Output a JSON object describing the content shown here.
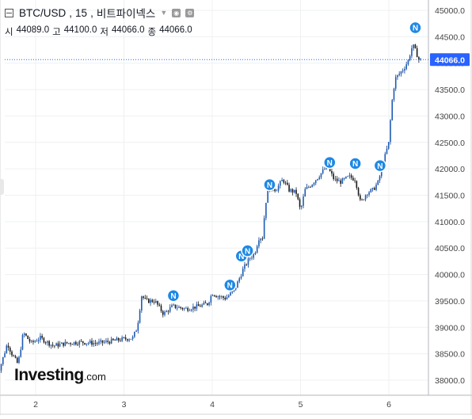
{
  "header": {
    "symbol": "BTC/USD",
    "separator1": ",",
    "interval": "15",
    "separator2": ",",
    "exchange": "비트파이넥스",
    "ohlc": {
      "open_label": "시",
      "open_value": "44089.0",
      "high_label": "고",
      "high_value": "44100.0",
      "low_label": "저",
      "low_value": "44066.0",
      "close_label": "종",
      "close_value": "44066.0"
    }
  },
  "price_tag": "44066.0",
  "logo": {
    "main": "Investing",
    "suffix": ".com"
  },
  "news_marker_label": "N",
  "colors": {
    "up": "#26a69a",
    "down": "#1a1a1a",
    "up_candle": "#0c3f8a",
    "price_tag": "#2962ff",
    "news": "#1e88e5"
  },
  "chart_data": {
    "type": "candlestick",
    "x_ticks": [
      "2",
      "3",
      "4",
      "5",
      "6"
    ],
    "y_ticks": [
      "45000.0",
      "44500.0",
      "44000.0",
      "43500.0",
      "43000.0",
      "42500.0",
      "42000.0",
      "41500.0",
      "41000.0",
      "40500.0",
      "40000.0",
      "39500.0",
      "39000.0",
      "38500.0",
      "38000.0"
    ],
    "ylim": [
      37850,
      45100
    ],
    "last_price": 44066,
    "path": [
      [
        1.55,
        38100
      ],
      [
        1.6,
        38250
      ],
      [
        1.68,
        38700
      ],
      [
        1.73,
        38500
      ],
      [
        1.8,
        38300
      ],
      [
        1.86,
        38900
      ],
      [
        1.95,
        38700
      ],
      [
        2.05,
        38800
      ],
      [
        2.2,
        38650
      ],
      [
        2.35,
        38700
      ],
      [
        2.5,
        38720
      ],
      [
        2.7,
        38700
      ],
      [
        2.9,
        38750
      ],
      [
        3.0,
        38780
      ],
      [
        3.1,
        38800
      ],
      [
        3.15,
        39000
      ],
      [
        3.2,
        39600
      ],
      [
        3.25,
        39500
      ],
      [
        3.35,
        39500
      ],
      [
        3.45,
        39250
      ],
      [
        3.55,
        39400
      ],
      [
        3.7,
        39350
      ],
      [
        3.85,
        39400
      ],
      [
        3.95,
        39450
      ],
      [
        4.0,
        39650
      ],
      [
        4.05,
        39600
      ],
      [
        4.15,
        39550
      ],
      [
        4.25,
        39700
      ],
      [
        4.3,
        39900
      ],
      [
        4.35,
        40100
      ],
      [
        4.42,
        40300
      ],
      [
        4.48,
        40400
      ],
      [
        4.53,
        40700
      ],
      [
        4.57,
        40700
      ],
      [
        4.6,
        41300
      ],
      [
        4.63,
        41600
      ],
      [
        4.68,
        41650
      ],
      [
        4.72,
        41600
      ],
      [
        4.8,
        41800
      ],
      [
        4.87,
        41600
      ],
      [
        4.95,
        41550
      ],
      [
        5.0,
        41200
      ],
      [
        5.05,
        41600
      ],
      [
        5.12,
        41700
      ],
      [
        5.2,
        41850
      ],
      [
        5.3,
        42050
      ],
      [
        5.38,
        41800
      ],
      [
        5.45,
        41750
      ],
      [
        5.55,
        41850
      ],
      [
        5.62,
        41800
      ],
      [
        5.68,
        41350
      ],
      [
        5.75,
        41550
      ],
      [
        5.82,
        41600
      ],
      [
        5.88,
        41750
      ],
      [
        5.95,
        42200
      ],
      [
        6.0,
        42500
      ],
      [
        6.03,
        43200
      ],
      [
        6.07,
        43700
      ],
      [
        6.12,
        43800
      ],
      [
        6.17,
        43900
      ],
      [
        6.22,
        44050
      ],
      [
        6.27,
        44350
      ],
      [
        6.31,
        44200
      ],
      [
        6.34,
        44066
      ],
      [
        6.38,
        44066
      ]
    ],
    "news_markers": [
      {
        "x": 3.56,
        "y": 39600
      },
      {
        "x": 4.2,
        "y": 39800
      },
      {
        "x": 4.33,
        "y": 40350
      },
      {
        "x": 4.4,
        "y": 40450
      },
      {
        "x": 4.65,
        "y": 41700
      },
      {
        "x": 5.33,
        "y": 42120
      },
      {
        "x": 5.62,
        "y": 42100
      },
      {
        "x": 5.9,
        "y": 42060
      },
      {
        "x": 6.3,
        "y": 44670
      }
    ],
    "grid": true,
    "legend": "none"
  }
}
